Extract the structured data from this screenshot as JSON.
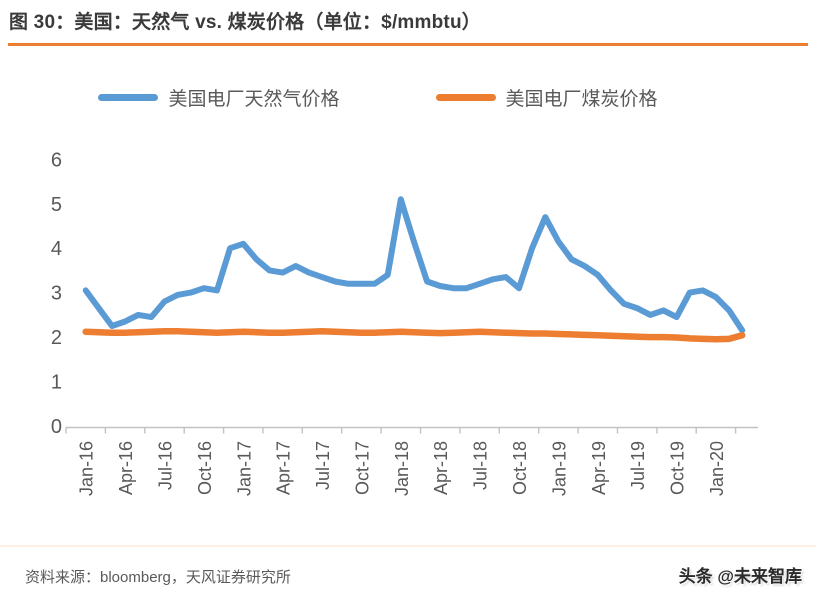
{
  "header": {
    "title": "图 30：美国：天然气 vs. 煤炭价格（单位：$/mmbtu）"
  },
  "colors": {
    "accent": "#ED7D31",
    "gas_blue": "#5B9BD5",
    "coal_orange": "#ED7D31",
    "axis_gray": "#C2C2C2",
    "tick_text_gray": "#595959"
  },
  "chart_data": {
    "type": "line",
    "title": "美国：天然气 vs. 煤炭价格",
    "unit": "$/mmbtu",
    "grid": false,
    "legend_position": "top",
    "ylim": [
      0,
      6
    ],
    "y_ticks": [
      0,
      1,
      2,
      3,
      4,
      5,
      6
    ],
    "x_tick_labels": [
      "Jan-16",
      "Apr-16",
      "Jul-16",
      "Oct-16",
      "Jan-17",
      "Apr-17",
      "Jul-17",
      "Oct-17",
      "Jan-18",
      "Apr-18",
      "Jul-18",
      "Oct-18",
      "Jan-19",
      "Apr-19",
      "Jul-19",
      "Oct-19",
      "Jan-20"
    ],
    "months_per_point": 1,
    "points_per_tick": 3,
    "x_range_note": "monthly points from Jan-16 to Mar-20",
    "series": [
      {
        "key": "gas",
        "name": "美国电厂天然气价格",
        "color": "#5B9BD5",
        "values": [
          3.05,
          2.65,
          2.25,
          2.35,
          2.5,
          2.45,
          2.8,
          2.95,
          3.0,
          3.1,
          3.05,
          4.0,
          4.1,
          3.75,
          3.5,
          3.45,
          3.6,
          3.45,
          3.35,
          3.25,
          3.2,
          3.2,
          3.2,
          3.4,
          5.1,
          4.15,
          3.25,
          3.15,
          3.1,
          3.1,
          3.2,
          3.3,
          3.35,
          3.1,
          4.0,
          4.7,
          4.15,
          3.75,
          3.6,
          3.4,
          3.05,
          2.75,
          2.65,
          2.5,
          2.6,
          2.45,
          3.0,
          3.05,
          2.9,
          2.6,
          2.15
        ]
      },
      {
        "key": "coal",
        "name": "美国电厂煤炭价格",
        "color": "#ED7D31",
        "values": [
          2.12,
          2.11,
          2.1,
          2.1,
          2.11,
          2.12,
          2.13,
          2.13,
          2.12,
          2.11,
          2.1,
          2.11,
          2.12,
          2.11,
          2.1,
          2.1,
          2.11,
          2.12,
          2.13,
          2.12,
          2.11,
          2.1,
          2.1,
          2.11,
          2.12,
          2.11,
          2.1,
          2.09,
          2.1,
          2.11,
          2.12,
          2.11,
          2.1,
          2.09,
          2.08,
          2.08,
          2.07,
          2.06,
          2.05,
          2.04,
          2.03,
          2.02,
          2.01,
          2.0,
          2.0,
          1.99,
          1.97,
          1.96,
          1.95,
          1.96,
          2.04
        ]
      }
    ]
  },
  "footer": {
    "source": "资料来源：bloomberg，天风证券研究所",
    "watermark": "头条 @未来智库"
  }
}
